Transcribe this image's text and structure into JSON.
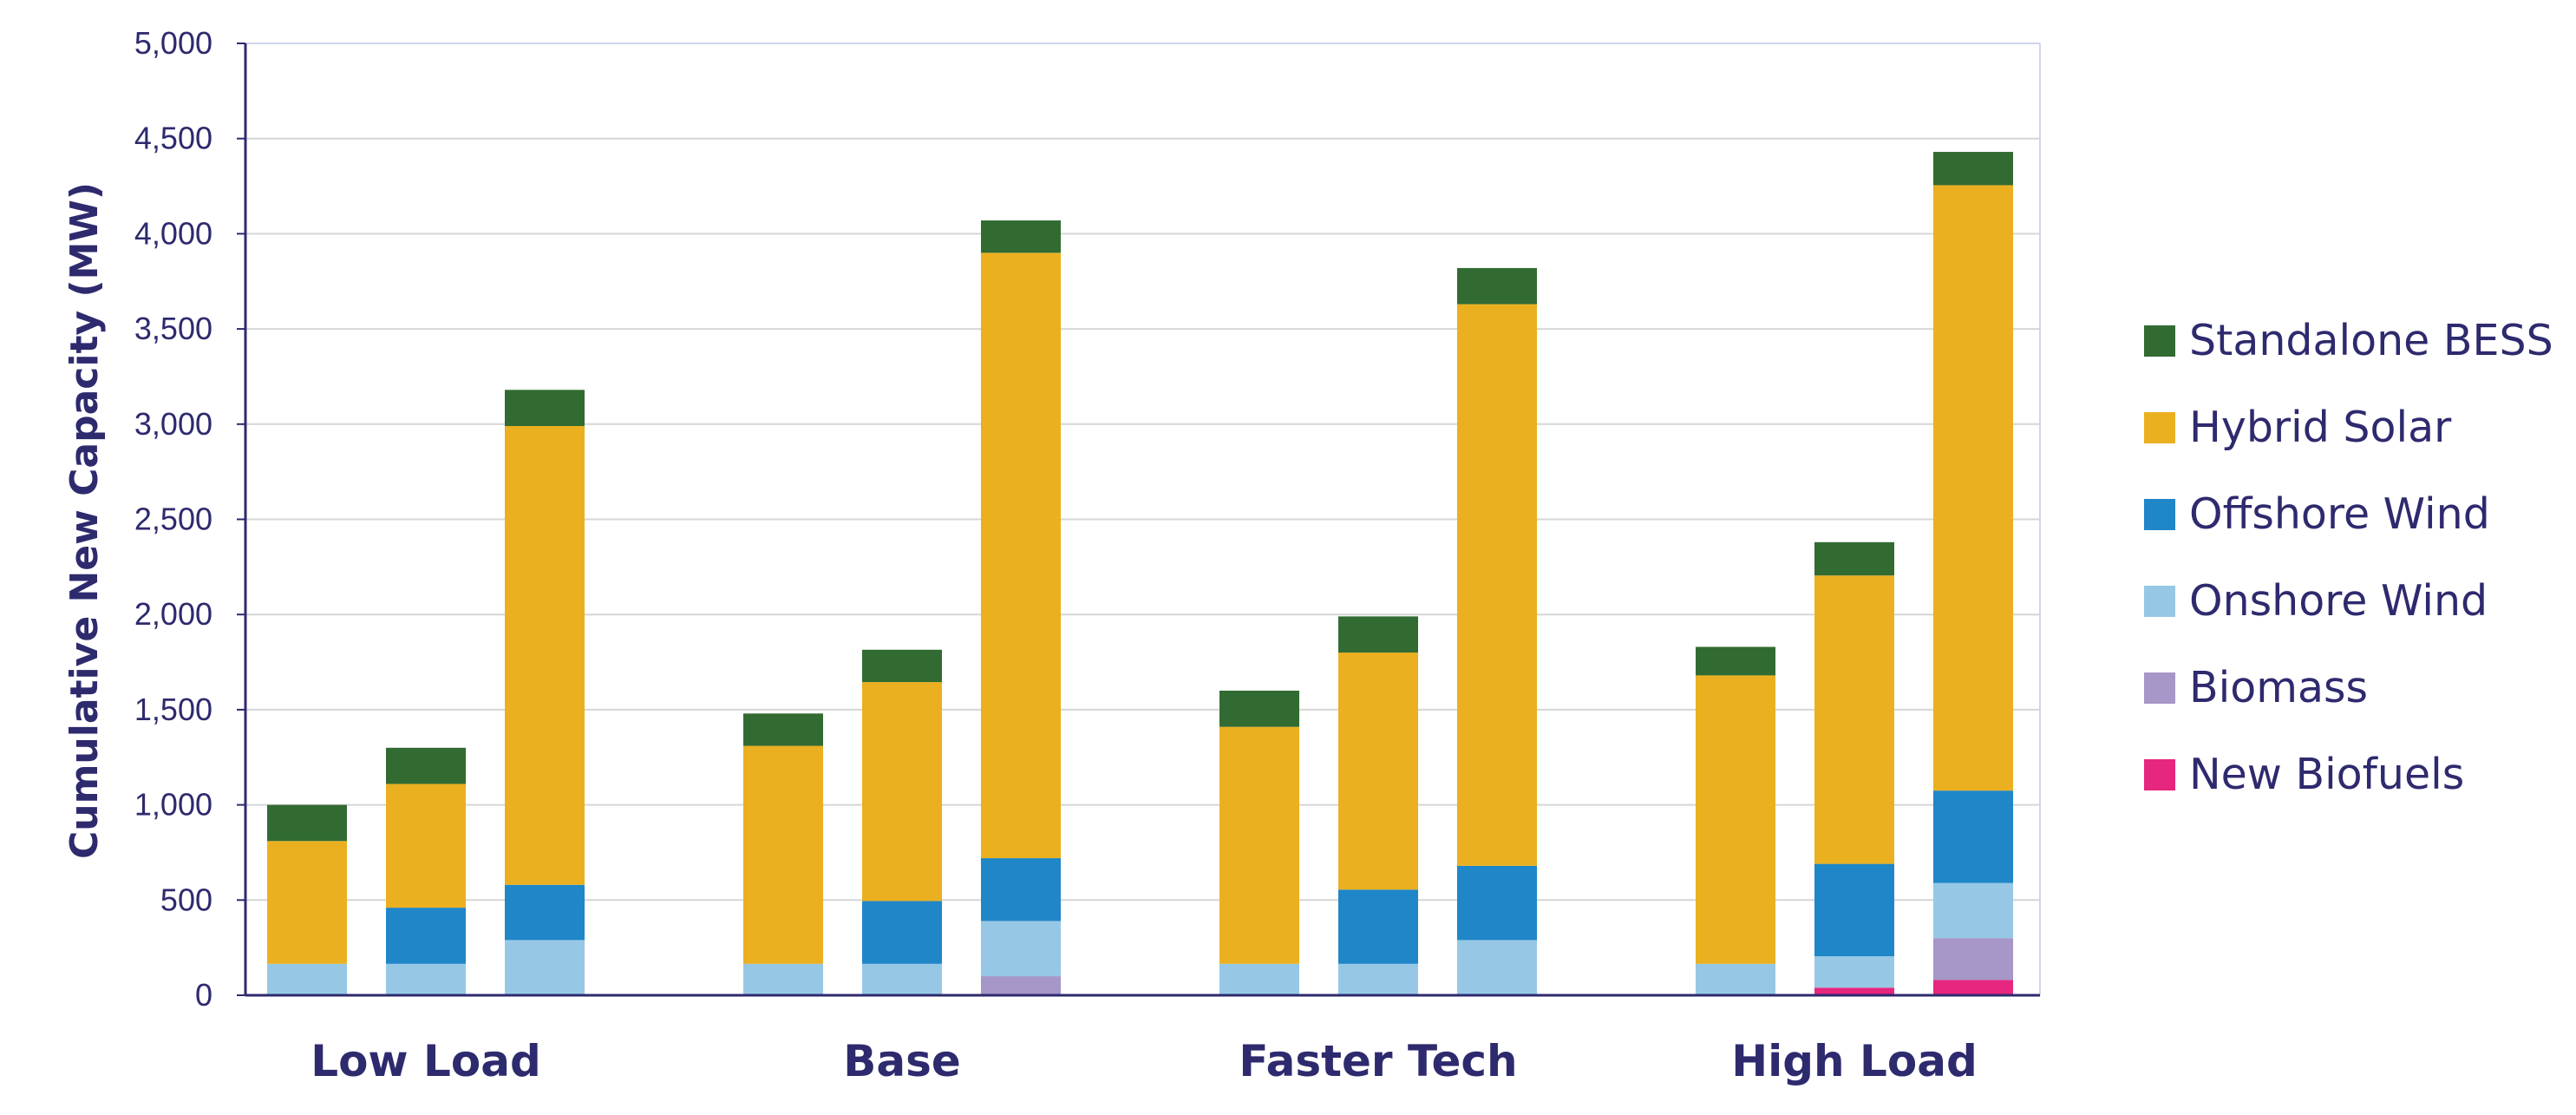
{
  "chart_data": {
    "type": "bar",
    "stacked": true,
    "title": "",
    "xlabel": "",
    "ylabel": "Cumulative New Capacity (MW)",
    "ylim": [
      0,
      5000
    ],
    "yticks": [
      0,
      500,
      1000,
      1500,
      2000,
      2500,
      3000,
      3500,
      4000,
      4500,
      5000
    ],
    "ytick_labels": [
      "0",
      "500",
      "1,000",
      "1,500",
      "2,000",
      "2,500",
      "3,000",
      "3,500",
      "4,000",
      "4,500",
      "5,000"
    ],
    "grid": true,
    "legend_position": "right",
    "groups": [
      "Low Load",
      "Base",
      "Faster Tech",
      "High Load"
    ],
    "bars_per_group": 3,
    "series": [
      {
        "name": "New Biofuels",
        "color": "#e6267f",
        "values": [
          0,
          0,
          0,
          0,
          0,
          0,
          0,
          0,
          0,
          0,
          40,
          80
        ]
      },
      {
        "name": "Biomass",
        "color": "#a796c8",
        "values": [
          0,
          0,
          0,
          0,
          0,
          100,
          0,
          0,
          0,
          0,
          0,
          220
        ]
      },
      {
        "name": "Onshore Wind",
        "color": "#96c8e6",
        "values": [
          165,
          165,
          290,
          165,
          165,
          290,
          165,
          165,
          290,
          165,
          165,
          290
        ]
      },
      {
        "name": "Offshore Wind",
        "color": "#1f86c8",
        "values": [
          0,
          295,
          290,
          0,
          330,
          330,
          0,
          390,
          390,
          0,
          485,
          485
        ]
      },
      {
        "name": "Hybrid Solar",
        "color": "#ebb020",
        "values": [
          645,
          650,
          2410,
          1145,
          1150,
          3180,
          1245,
          1245,
          2950,
          1515,
          1515,
          3180
        ]
      },
      {
        "name": "Standalone BESS",
        "color": "#326b32",
        "values": [
          190,
          190,
          190,
          170,
          170,
          170,
          190,
          190,
          190,
          150,
          175,
          175
        ]
      }
    ],
    "legend_order": [
      "Standalone BESS",
      "Hybrid Solar",
      "Offshore Wind",
      "Onshore Wind",
      "Biomass",
      "New Biofuels"
    ]
  }
}
